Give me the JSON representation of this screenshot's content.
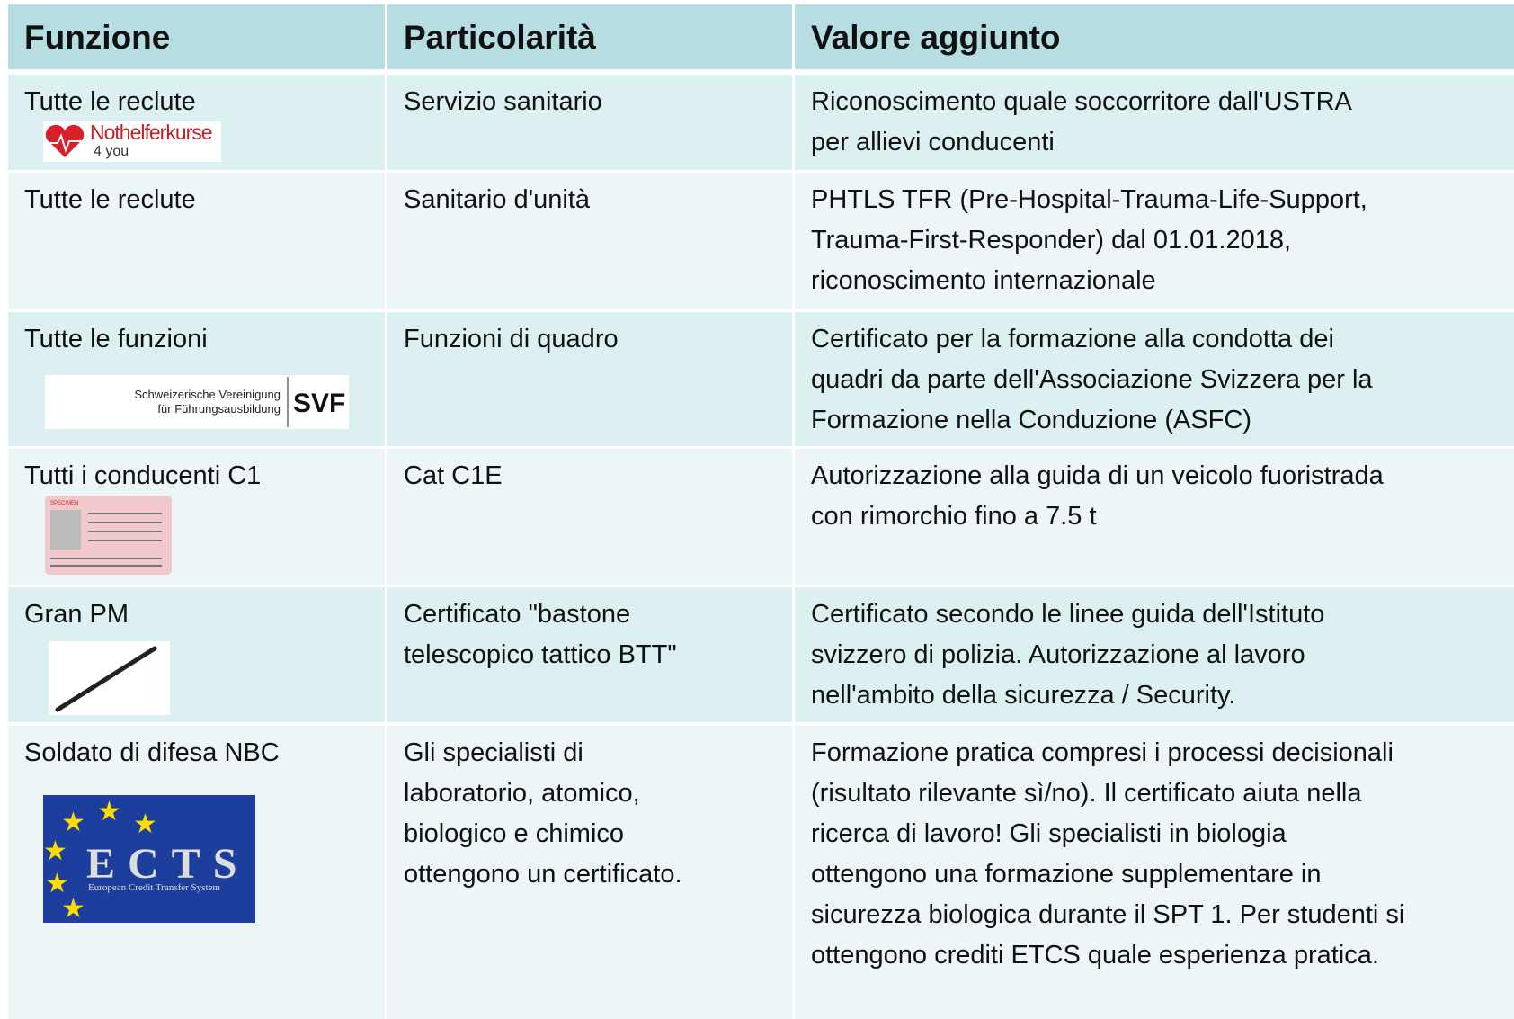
{
  "table": {
    "header": [
      "Funzione",
      "Particolarità",
      "Valore aggiunto"
    ],
    "rows": [
      {
        "function": [
          "Tutte le reclute"
        ],
        "feature": [
          "Servizio sanitario"
        ],
        "value": [
          "Riconoscimento quale soccorritore dall'USTRA",
          "per allievi conducenti"
        ]
      },
      {
        "function": [
          "Tutte le reclute"
        ],
        "feature": [
          "Sanitario d'unità"
        ],
        "value": [
          "PHTLS TFR (Pre-Hospital-Trauma-Life-Support,",
          "Trauma-First-Responder) dal 01.01.2018,",
          "riconoscimento  internazionale"
        ]
      },
      {
        "function": [
          "Tutte le funzioni"
        ],
        "feature": [
          "Funzioni di quadro"
        ],
        "value": [
          "Certificato per la formazione alla condotta dei",
          "quadri da parte dell'Associazione Svizzera per la",
          "Formazione nella Conduzione (ASFC)"
        ]
      },
      {
        "function": [
          "Tutti i conducenti C1"
        ],
        "feature": [
          "Cat C1E"
        ],
        "value": [
          "Autorizzazione alla guida di un veicolo fuoristrada",
          "con rimorchio fino a 7.5 t"
        ]
      },
      {
        "function": [
          "Gran PM"
        ],
        "feature": [
          "Certificato \"bastone",
          "telescopico tattico BTT\""
        ],
        "value": [
          "Certificato secondo le linee guida dell'Istituto",
          "svizzero di polizia. Autorizzazione al lavoro",
          "nell'ambito della sicurezza / Security."
        ]
      },
      {
        "function": [
          "Soldato di difesa NBC"
        ],
        "feature": [
          "Gli specialisti di",
          "laboratorio, atomico,",
          "biologico e chimico",
          "ottengono un certificato."
        ],
        "value": [
          "Formazione pratica compresi i processi decisionali",
          "(risultato rilevante sì/no). Il certificato aiuta nella",
          "ricerca di lavoro! Gli specialisti in biologia",
          "ottengono una formazione supplementare in",
          "sicurezza biologica durante il SPT 1. Per studenti si",
          "ottengono crediti ETCS quale esperienza pratica."
        ]
      }
    ]
  },
  "logos": {
    "nothelfer": {
      "name": "Nothelferkurse",
      "sub": "4 you"
    },
    "svf": {
      "line1": "Schweizerische Vereinigung",
      "line2": "für Führungsausbildung",
      "mark": "SVF"
    },
    "license": {
      "stamp": "SPECIMEN"
    },
    "ects": {
      "mark": "ECTS",
      "sub": "European Credit Transfer System"
    }
  }
}
